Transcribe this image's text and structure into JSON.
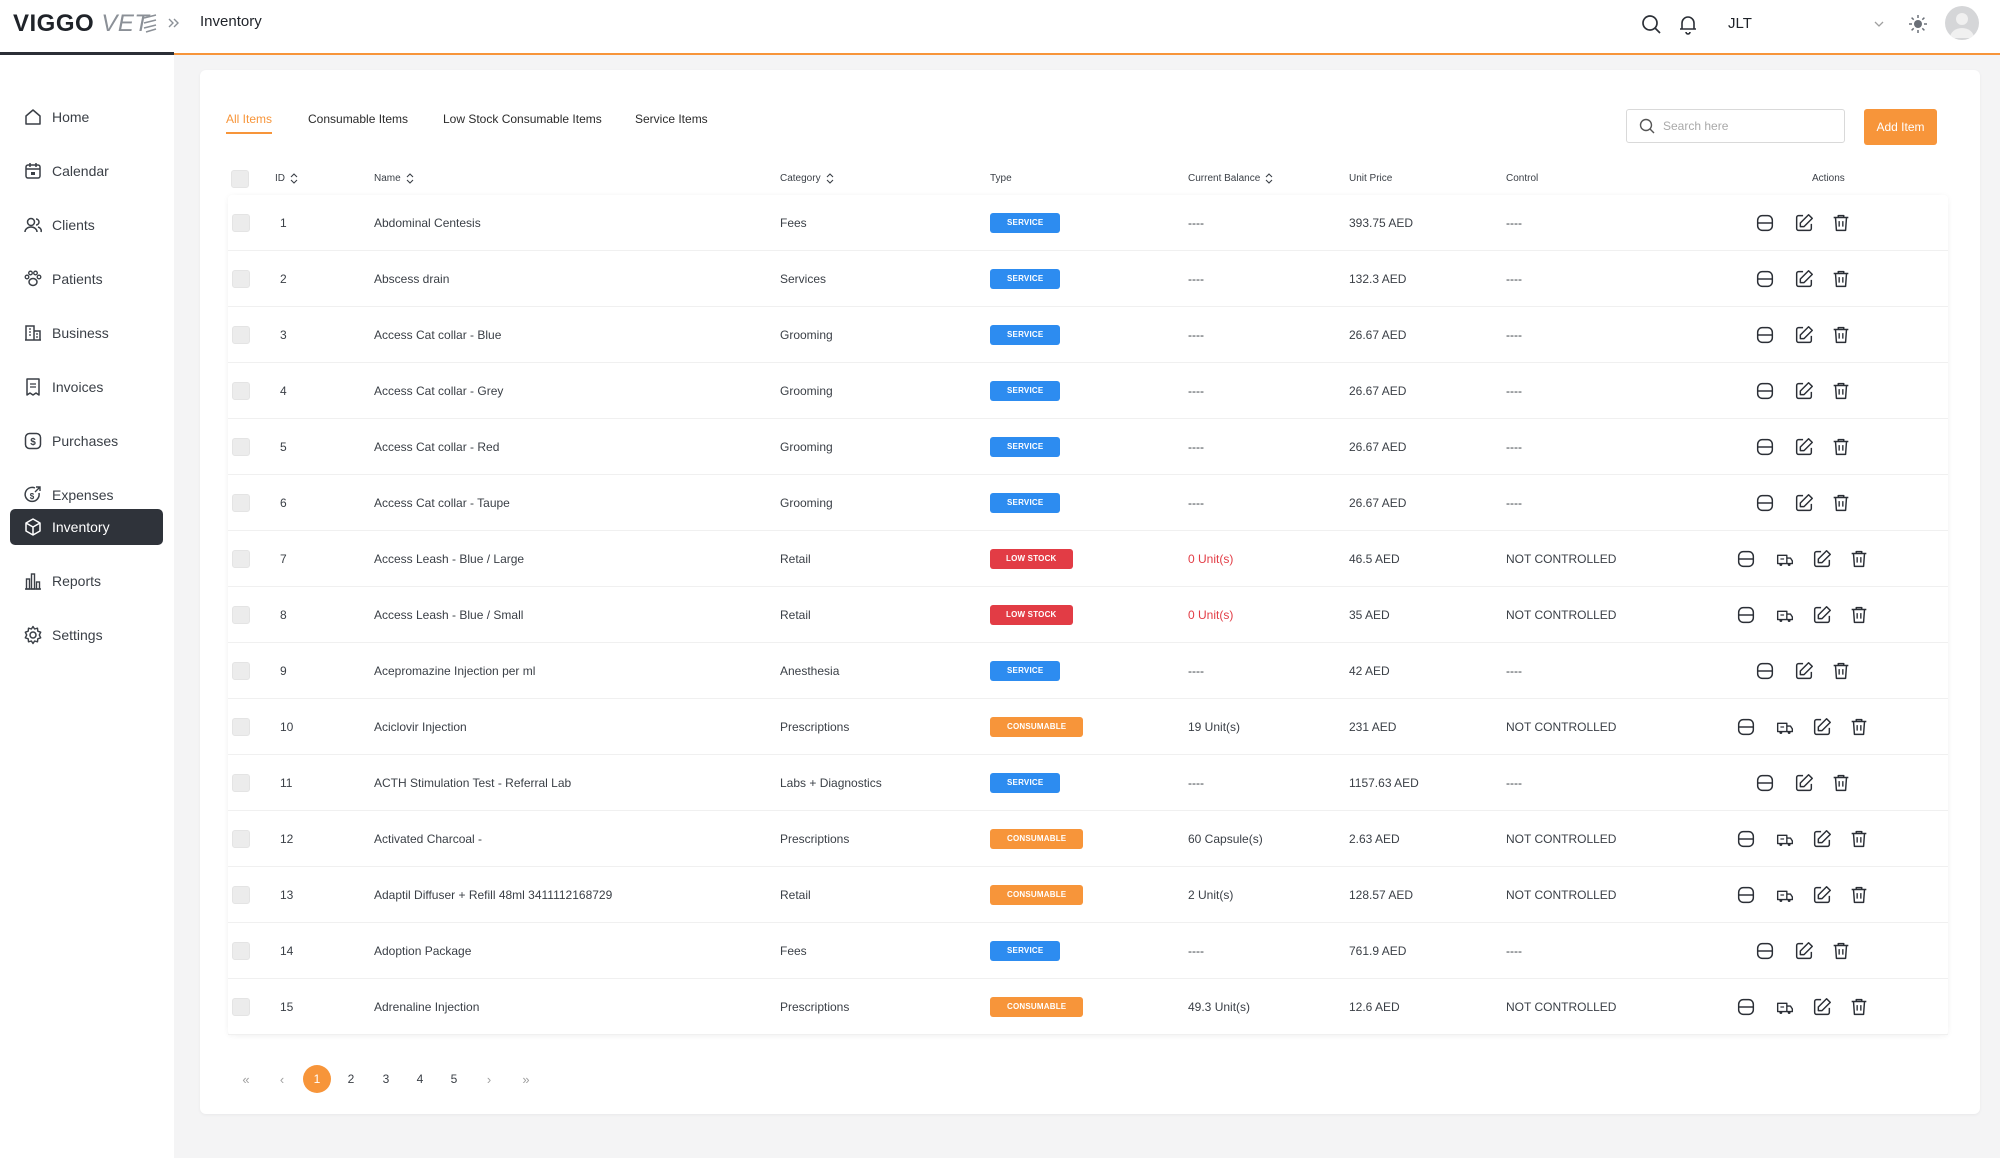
{
  "header": {
    "logo_bold": "VIGGO",
    "logo_light": "VET",
    "page_title": "Inventory",
    "user_name": "JLT"
  },
  "sidebar": {
    "items": [
      {
        "label": "Home",
        "icon": "home-icon"
      },
      {
        "label": "Calendar",
        "icon": "calendar-icon"
      },
      {
        "label": "Clients",
        "icon": "clients-icon"
      },
      {
        "label": "Patients",
        "icon": "paw-icon"
      },
      {
        "label": "Business",
        "icon": "business-icon"
      },
      {
        "label": "Invoices",
        "icon": "invoice-icon"
      },
      {
        "label": "Purchases",
        "icon": "dollar-icon"
      },
      {
        "label": "Expenses",
        "icon": "expenses-icon"
      },
      {
        "label": "Inventory",
        "icon": "box-icon",
        "active": true
      },
      {
        "label": "Reports",
        "icon": "bar-chart-icon"
      },
      {
        "label": "Settings",
        "icon": "gear-icon"
      }
    ]
  },
  "tabs": [
    "All Items",
    "Consumable Items",
    "Low Stock Consumable Items",
    "Service Items"
  ],
  "active_tab": "All Items",
  "search": {
    "placeholder": "Search here",
    "value": ""
  },
  "add_button": "Add Item",
  "columns": {
    "id": "ID",
    "name": "Name",
    "category": "Category",
    "type": "Type",
    "balance": "Current Balance",
    "price": "Unit Price",
    "control": "Control",
    "actions": "Actions"
  },
  "rows": [
    {
      "id": "1",
      "name": "Abdominal Centesis",
      "category": "Fees",
      "type": "SERVICE",
      "balance": "----",
      "price": "393.75 AED",
      "control": "----"
    },
    {
      "id": "2",
      "name": "Abscess drain",
      "category": "Services",
      "type": "SERVICE",
      "balance": "----",
      "price": "132.3 AED",
      "control": "----"
    },
    {
      "id": "3",
      "name": "Access Cat collar - Blue",
      "category": "Grooming",
      "type": "SERVICE",
      "balance": "----",
      "price": "26.67 AED",
      "control": "----"
    },
    {
      "id": "4",
      "name": "Access Cat collar - Grey",
      "category": "Grooming",
      "type": "SERVICE",
      "balance": "----",
      "price": "26.67 AED",
      "control": "----"
    },
    {
      "id": "5",
      "name": "Access Cat collar - Red",
      "category": "Grooming",
      "type": "SERVICE",
      "balance": "----",
      "price": "26.67 AED",
      "control": "----"
    },
    {
      "id": "6",
      "name": "Access Cat collar - Taupe",
      "category": "Grooming",
      "type": "SERVICE",
      "balance": "----",
      "price": "26.67 AED",
      "control": "----"
    },
    {
      "id": "7",
      "name": "Access Leash - Blue / Large",
      "category": "Retail",
      "type": "LOW STOCK",
      "balance": "0 Unit(s)",
      "price": "46.5 AED",
      "control": "NOT CONTROLLED"
    },
    {
      "id": "8",
      "name": "Access Leash - Blue / Small",
      "category": "Retail",
      "type": "LOW STOCK",
      "balance": "0 Unit(s)",
      "price": "35 AED",
      "control": "NOT CONTROLLED"
    },
    {
      "id": "9",
      "name": "Acepromazine Injection per ml",
      "category": "Anesthesia",
      "type": "SERVICE",
      "balance": "----",
      "price": "42 AED",
      "control": "----"
    },
    {
      "id": "10",
      "name": "Aciclovir Injection",
      "category": "Prescriptions",
      "type": "CONSUMABLE",
      "balance": "19 Unit(s)",
      "price": "231 AED",
      "control": "NOT CONTROLLED"
    },
    {
      "id": "11",
      "name": "ACTH Stimulation Test - Referral Lab",
      "category": "Labs + Diagnostics",
      "type": "SERVICE",
      "balance": "----",
      "price": "1157.63 AED",
      "control": "----"
    },
    {
      "id": "12",
      "name": "Activated Charcoal -",
      "category": "Prescriptions",
      "type": "CONSUMABLE",
      "balance": "60 Capsule(s)",
      "price": "2.63 AED",
      "control": "NOT CONTROLLED"
    },
    {
      "id": "13",
      "name": "Adaptil Diffuser + Refill 48ml 3411112168729",
      "category": "Retail",
      "type": "CONSUMABLE",
      "balance": "2 Unit(s)",
      "price": "128.57 AED",
      "control": "NOT CONTROLLED"
    },
    {
      "id": "14",
      "name": "Adoption Package",
      "category": "Fees",
      "type": "SERVICE",
      "balance": "----",
      "price": "761.9 AED",
      "control": "----"
    },
    {
      "id": "15",
      "name": "Adrenaline Injection",
      "category": "Prescriptions",
      "type": "CONSUMABLE",
      "balance": "49.3 Unit(s)",
      "price": "12.6 AED",
      "control": "NOT CONTROLLED"
    }
  ],
  "pagination": {
    "first": "«",
    "prev": "‹",
    "pages": [
      "1",
      "2",
      "3",
      "4",
      "5"
    ],
    "current": "1",
    "next": "›",
    "last": "»"
  },
  "colors": {
    "accent": "#f7953a",
    "service": "#2d8cf0",
    "low_stock": "#e23c45",
    "consumable": "#f7953a",
    "sidebar_active": "#2f333a"
  }
}
